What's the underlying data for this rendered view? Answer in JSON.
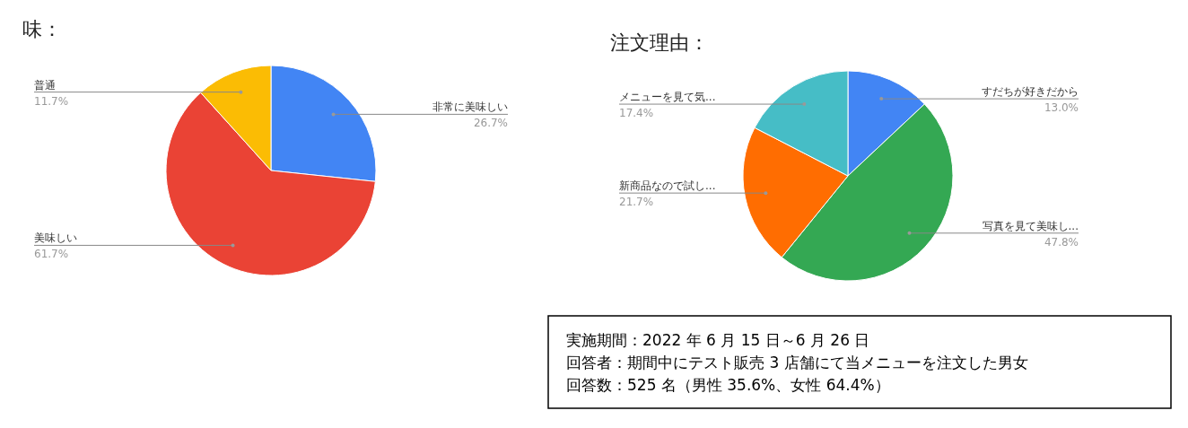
{
  "chart_data": [
    {
      "type": "pie",
      "title": "味：",
      "categories": [
        "非常に美味しい",
        "美味しい",
        "普通"
      ],
      "values": [
        26.7,
        61.7,
        11.7
      ],
      "colors": [
        "#4285f4",
        "#ea4335",
        "#fbbc04"
      ],
      "value_labels": [
        "26.7%",
        "61.7%",
        "11.7%"
      ]
    },
    {
      "type": "pie",
      "title": "注文理由：",
      "categories": [
        "すだちが好きだから",
        "写真を見て美味し...",
        "新商品なので試し...",
        "メニューを見て気..."
      ],
      "values": [
        13.0,
        47.8,
        21.7,
        17.4
      ],
      "colors": [
        "#4285f4",
        "#34a853",
        "#ff6d01",
        "#46bdc6"
      ],
      "value_labels": [
        "13.0%",
        "47.8%",
        "21.7%",
        "17.4%"
      ]
    },
    {
      "type": "other",
      "annotations": [
        "実施期間：2022 年 6 月 15 日～6 月 26 日",
        "回答者：期間中にテスト販売 3 店舗にて当メニューを注文した男女",
        "回答数：525 名（男性 35.6%、女性 64.4%）"
      ]
    }
  ]
}
